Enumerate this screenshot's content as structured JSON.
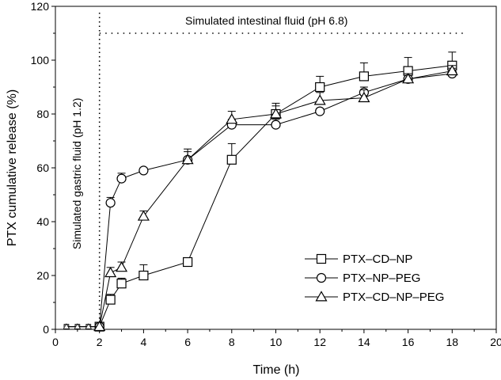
{
  "chart_data": {
    "type": "line",
    "title": "",
    "xlabel": "Time (h)",
    "ylabel": "PTX cumulative release (%)",
    "xlim": [
      0,
      20
    ],
    "ylim": [
      0,
      120
    ],
    "xticks": [
      0,
      2,
      4,
      6,
      8,
      10,
      12,
      14,
      16,
      18,
      20
    ],
    "yticks": [
      0,
      20,
      40,
      60,
      80,
      100,
      120
    ],
    "grid": false,
    "legend_position": "lower-right",
    "annotations": [
      {
        "text": "Simulated intestinal fluid (pH 6.8)",
        "orientation": "horizontal"
      },
      {
        "text": "Simulated gastric fluid (pH 1.2)",
        "orientation": "vertical"
      }
    ],
    "phase_boundary_x": 2,
    "phase_line_y": 110,
    "series": [
      {
        "name": "PTX–CD–NP",
        "marker": "square",
        "x": [
          0.5,
          1,
          1.5,
          2,
          2.5,
          3,
          4,
          6,
          8,
          10,
          12,
          14,
          16,
          18
        ],
        "y": [
          1,
          1,
          1,
          1,
          11,
          17,
          20,
          25,
          63,
          80,
          90,
          94,
          96,
          98
        ],
        "err": [
          0,
          0,
          0,
          0,
          2,
          2,
          4,
          0,
          6,
          4,
          4,
          5,
          5,
          5
        ]
      },
      {
        "name": "PTX–NP–PEG",
        "marker": "circle",
        "x": [
          0.5,
          1,
          1.5,
          2,
          2.5,
          3,
          4,
          6,
          8,
          10,
          12,
          14,
          16,
          18
        ],
        "y": [
          1,
          1,
          1,
          1,
          47,
          56,
          59,
          63,
          76,
          76,
          81,
          88,
          93,
          95
        ],
        "err": [
          0,
          0,
          0,
          0,
          2,
          2,
          1,
          3,
          2,
          2,
          1,
          2,
          2,
          2
        ]
      },
      {
        "name": "PTX–CD–NP–PEG",
        "marker": "triangle",
        "x": [
          0.5,
          1,
          1.5,
          2,
          2.5,
          3,
          4,
          6,
          8,
          10,
          12,
          14,
          16,
          18
        ],
        "y": [
          1,
          1,
          1,
          1,
          21,
          23,
          42,
          63,
          78,
          80,
          85,
          86,
          93,
          96
        ],
        "err": [
          0,
          0,
          0,
          0,
          2,
          2,
          2,
          4,
          3,
          3,
          3,
          3,
          2,
          2
        ]
      }
    ]
  }
}
